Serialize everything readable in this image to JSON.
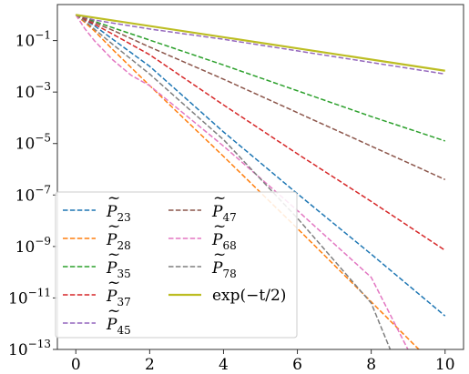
{
  "chart_data": {
    "type": "line",
    "title": "",
    "xlabel": "",
    "ylabel": "",
    "xlim": [
      -0.5,
      10.5
    ],
    "ylim_log10": [
      -13,
      0.4
    ],
    "yscale": "log",
    "grid": false,
    "legend_placement": "bottom-left",
    "x_ticks": [
      0,
      2,
      4,
      6,
      8,
      10
    ],
    "x_tick_labels": [
      "0",
      "2",
      "4",
      "6",
      "8",
      "10"
    ],
    "y_ticks_log10": [
      -1,
      -3,
      -5,
      -7,
      -9,
      -11,
      -13
    ],
    "y_tick_labels": [
      {
        "base": "10",
        "exp": "−1"
      },
      {
        "base": "10",
        "exp": "−3"
      },
      {
        "base": "10",
        "exp": "−5"
      },
      {
        "base": "10",
        "exp": "−7"
      },
      {
        "base": "10",
        "exp": "−9"
      },
      {
        "base": "10",
        "exp": "−11"
      },
      {
        "base": "10",
        "exp": "−13"
      }
    ],
    "series": [
      {
        "name": "P̃23",
        "label_base": "P",
        "label_sub": "23",
        "color": "#1f77b4",
        "dash": true,
        "x": [
          0,
          0.25,
          0.5,
          1,
          2,
          4,
          6,
          8,
          10
        ],
        "log10y": [
          0,
          -0.2,
          -0.42,
          -0.95,
          -2.0,
          -4.55,
          -6.95,
          -9.3,
          -11.7
        ]
      },
      {
        "name": "P̃28",
        "label_base": "P",
        "label_sub": "28",
        "color": "#ff7f0e",
        "dash": true,
        "x": [
          0,
          0.25,
          0.5,
          1,
          2,
          4,
          6,
          8,
          9.5
        ],
        "log10y": [
          0,
          -0.3,
          -0.62,
          -1.35,
          -2.75,
          -5.5,
          -8.3,
          -11.15,
          -13.3
        ]
      },
      {
        "name": "P̃35",
        "label_base": "P",
        "label_sub": "35",
        "color": "#2ca02c",
        "dash": true,
        "x": [
          0,
          0.25,
          0.5,
          1,
          2,
          4,
          6,
          8,
          10
        ],
        "log10y": [
          0,
          -0.1,
          -0.25,
          -0.5,
          -0.98,
          -1.95,
          -2.95,
          -3.95,
          -4.9
        ]
      },
      {
        "name": "P̃37",
        "label_base": "P",
        "label_sub": "37",
        "color": "#d62728",
        "dash": true,
        "x": [
          0,
          0.25,
          0.5,
          1,
          2,
          4,
          6,
          8,
          10
        ],
        "log10y": [
          0,
          -0.2,
          -0.36,
          -0.75,
          -1.55,
          -3.5,
          -5.4,
          -7.25,
          -9.15
        ]
      },
      {
        "name": "P̃45",
        "label_base": "P",
        "label_sub": "45",
        "color": "#9467bd",
        "dash": true,
        "x": [
          0,
          0.5,
          1,
          2,
          4,
          6,
          8,
          10
        ],
        "log10y": [
          0,
          -0.2,
          -0.32,
          -0.55,
          -0.95,
          -1.4,
          -1.85,
          -2.3
        ]
      },
      {
        "name": "P̃47",
        "label_base": "P",
        "label_sub": "47",
        "color": "#8c564b",
        "dash": true,
        "x": [
          0,
          0.25,
          0.5,
          1,
          2,
          4,
          6,
          8,
          10
        ],
        "log10y": [
          0,
          -0.15,
          -0.3,
          -0.6,
          -1.25,
          -2.5,
          -3.8,
          -5.1,
          -6.4
        ]
      },
      {
        "name": "P̃68",
        "label_base": "P",
        "label_sub": "68",
        "color": "#e377c2",
        "dash": true,
        "x": [
          0,
          0.25,
          0.5,
          1,
          1.5,
          2,
          4,
          6,
          8,
          9.1
        ],
        "log10y": [
          0,
          -0.55,
          -1.0,
          -1.75,
          -2.35,
          -2.75,
          -5.1,
          -7.6,
          -10.2,
          -13.3
        ]
      },
      {
        "name": "P̃78",
        "label_base": "P",
        "label_sub": "78",
        "color": "#7f7f7f",
        "dash": true,
        "x": [
          0,
          0.25,
          0.5,
          1,
          2,
          4,
          6,
          8,
          8.6
        ],
        "log10y": [
          0,
          -0.25,
          -0.55,
          -1.15,
          -2.3,
          -4.85,
          -7.9,
          -11.2,
          -13.3
        ]
      },
      {
        "name": "exp(−t/2)",
        "label_text": "exp(−t/2)",
        "color": "#bcbd22",
        "dash": false,
        "x": [
          0,
          10
        ],
        "log10y": [
          0,
          -2.1715
        ]
      }
    ]
  }
}
